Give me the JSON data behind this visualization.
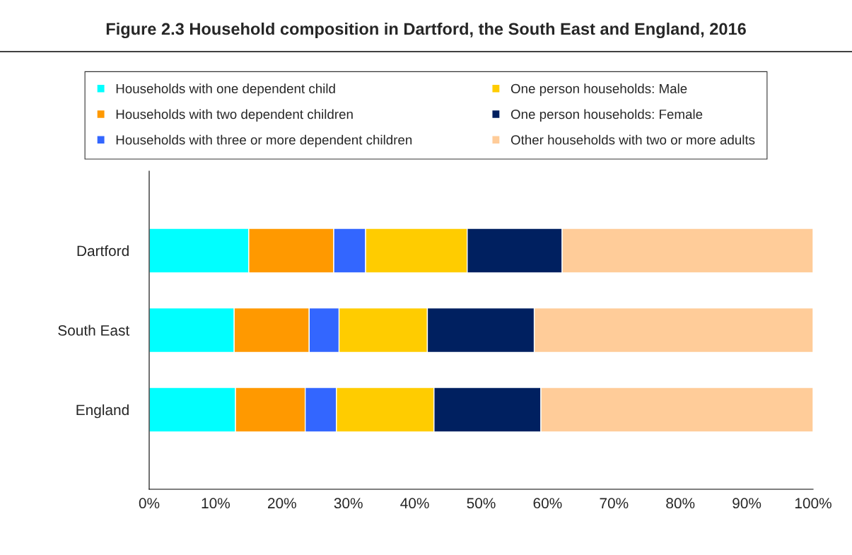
{
  "chart_data": {
    "type": "bar",
    "orientation": "horizontal",
    "stacked": true,
    "title": "Figure 2.3 Household composition in Dartford, the South East and England, 2016",
    "categories": [
      "Dartford",
      "South East",
      "England"
    ],
    "series": [
      {
        "name": "Households with one dependent child",
        "color": "#00ffff",
        "values": [
          15.0,
          12.8,
          13.0
        ]
      },
      {
        "name": "Households with two dependent children",
        "color": "#ff9900",
        "values": [
          12.8,
          11.3,
          10.5
        ]
      },
      {
        "name": "Households with three or more dependent children",
        "color": "#3366ff",
        "values": [
          4.8,
          4.5,
          4.7
        ]
      },
      {
        "name": "One person households: Male",
        "color": "#ffcc00",
        "values": [
          15.3,
          13.3,
          14.7
        ]
      },
      {
        "name": "One person households: Female",
        "color": "#002060",
        "values": [
          14.3,
          16.1,
          16.1
        ]
      },
      {
        "name": "Other households with two or more adults",
        "color": "#ffcc99",
        "values": [
          37.8,
          42.0,
          41.0
        ]
      }
    ],
    "xlim": [
      0,
      100
    ],
    "xticks": [
      {
        "value": 0,
        "label": "0%"
      },
      {
        "value": 10,
        "label": "10%"
      },
      {
        "value": 20,
        "label": "20%"
      },
      {
        "value": 30,
        "label": "30%"
      },
      {
        "value": 40,
        "label": "40%"
      },
      {
        "value": 50,
        "label": "50%"
      },
      {
        "value": 60,
        "label": "60%"
      },
      {
        "value": 70,
        "label": "70%"
      },
      {
        "value": 80,
        "label": "80%"
      },
      {
        "value": 90,
        "label": "90%"
      },
      {
        "value": 100,
        "label": "100%"
      }
    ],
    "grid": false,
    "legend": "top"
  }
}
